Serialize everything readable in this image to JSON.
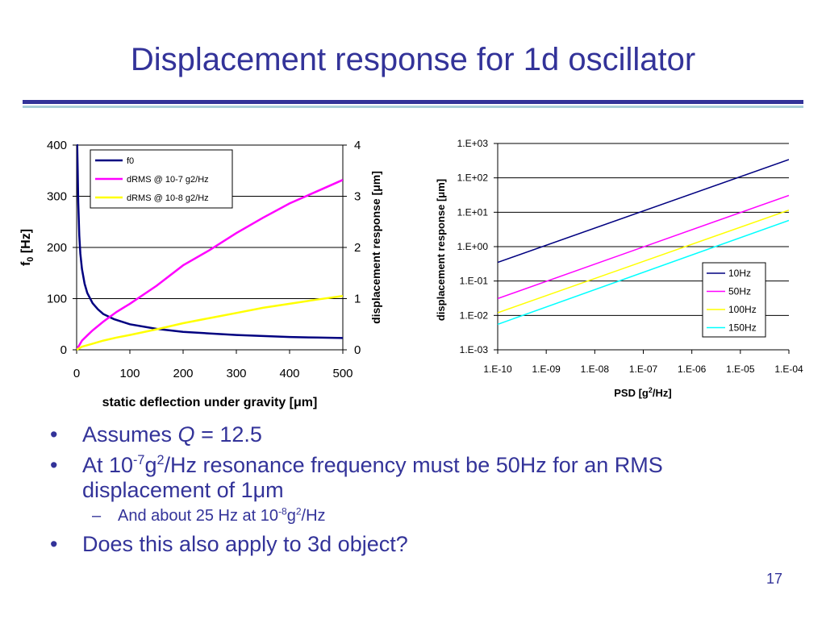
{
  "slide": {
    "title": "Displacement response for 1d oscillator",
    "page_number": "17",
    "bullets": {
      "b1": {
        "pre": "Assumes ",
        "q": "Q",
        "post": " = 12.5"
      },
      "b2": {
        "pre": "At 10",
        "sup1": "-7",
        "mid": "g",
        "sup2": "2",
        "post": "/Hz resonance frequency must be 50Hz for an RMS displacement of 1μm"
      },
      "b3": {
        "pre": "And about 25 Hz at 10",
        "sup1": "-8",
        "mid": "g",
        "sup2": "2",
        "post": "/Hz"
      },
      "b4": {
        "text": "Does this also apply to 3d object?"
      }
    }
  },
  "chart_data": [
    {
      "type": "line",
      "xlabel": "static deflection under gravity [μm]",
      "ylabel_main": "f",
      "ylabel_sub": "0",
      "ylabel_unit": " [Hz]",
      "y2label": "displacement response [μm]",
      "xlim": [
        0,
        500
      ],
      "ylim": [
        0,
        400
      ],
      "y2lim": [
        0,
        4
      ],
      "xticks": [
        "0",
        "100",
        "200",
        "300",
        "400",
        "500"
      ],
      "yticks": [
        "0",
        "100",
        "200",
        "300",
        "400"
      ],
      "y2ticks": [
        "0",
        "1",
        "2",
        "3",
        "4"
      ],
      "grid": "horizontal",
      "legend": "top-left",
      "series": [
        {
          "name": "f0",
          "axis": "left",
          "color": "#000080",
          "x": [
            0.1,
            0.3,
            1,
            2,
            3,
            5,
            7,
            10,
            15,
            20,
            30,
            40,
            50,
            70,
            100,
            150,
            200,
            250,
            300,
            350,
            400,
            450,
            500
          ],
          "y": [
            400,
            400,
            400,
            352,
            288,
            223,
            188,
            158,
            129,
            111,
            91,
            79,
            70,
            60,
            50,
            41,
            35,
            32,
            29,
            27,
            25,
            24,
            23
          ]
        },
        {
          "name": "dRMS @ 10-7 g2/Hz",
          "axis": "right",
          "color": "#ff00ff",
          "x": [
            0,
            10,
            20,
            30,
            50,
            75,
            100,
            150,
            200,
            250,
            300,
            350,
            400,
            450,
            500
          ],
          "y": [
            0,
            0.18,
            0.28,
            0.38,
            0.55,
            0.74,
            0.9,
            1.25,
            1.65,
            1.95,
            2.28,
            2.58,
            2.86,
            3.09,
            3.32
          ]
        },
        {
          "name": "dRMS @ 10-8 g2/Hz",
          "axis": "right",
          "color": "#ffff00",
          "x": [
            0,
            10,
            20,
            30,
            50,
            75,
            100,
            150,
            200,
            250,
            300,
            350,
            400,
            450,
            500
          ],
          "y": [
            0,
            0.06,
            0.09,
            0.12,
            0.18,
            0.24,
            0.29,
            0.4,
            0.52,
            0.62,
            0.72,
            0.82,
            0.9,
            0.98,
            1.05
          ]
        }
      ]
    },
    {
      "type": "line",
      "xlabel_pre": "PSD [g",
      "xlabel_sup": "2",
      "xlabel_post": "/Hz]",
      "ylabel": "displacement response [μm]",
      "x_scale": "log",
      "y_scale": "log",
      "xlim": [
        1e-10,
        0.0001
      ],
      "ylim": [
        0.001,
        1000
      ],
      "xticks": [
        "1.E-10",
        "1.E-09",
        "1.E-08",
        "1.E-07",
        "1.E-06",
        "1.E-05",
        "1.E-04"
      ],
      "yticks": [
        "1.E-03",
        "1.E-02",
        "1.E-01",
        "1.E+00",
        "1.E+01",
        "1.E+02",
        "1.E+03"
      ],
      "grid": "horizontal",
      "legend": "bottom-right",
      "series": [
        {
          "name": "10Hz",
          "color": "#000080",
          "x": [
            1e-10,
            0.0001
          ],
          "y": [
            0.35,
            340
          ]
        },
        {
          "name": "50Hz",
          "color": "#ff00ff",
          "x": [
            1e-10,
            0.0001
          ],
          "y": [
            0.031,
            31
          ]
        },
        {
          "name": "100Hz",
          "color": "#ffff00",
          "x": [
            1e-10,
            0.0001
          ],
          "y": [
            0.012,
            11.5
          ]
        },
        {
          "name": "150Hz",
          "color": "#00ffff",
          "x": [
            1e-10,
            0.0001
          ],
          "y": [
            0.0055,
            5.8
          ]
        }
      ]
    }
  ]
}
